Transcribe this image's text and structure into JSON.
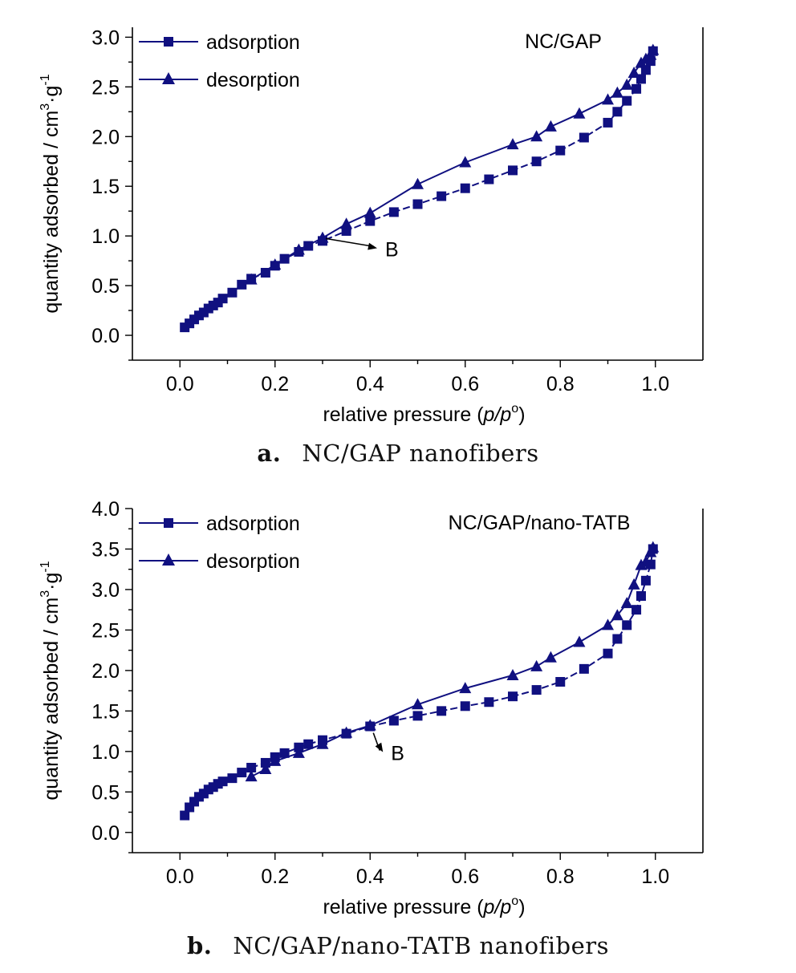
{
  "chart_data": [
    {
      "type": "line",
      "title": "NC/GAP",
      "xlabel_main": "relative pressure (",
      "xlabel_italic": "p/p",
      "xlabel_sup": "o",
      "xlabel_end": ")",
      "ylabel_main": "quantity adsorbed / cm",
      "ylabel_sup1": "3",
      "ylabel_mid": "·g",
      "ylabel_sup2": "-1",
      "xlim": [
        -0.1,
        1.1
      ],
      "ylim": [
        -0.25,
        3.1
      ],
      "xticks": [
        "0.0",
        "0.2",
        "0.4",
        "0.6",
        "0.8",
        "1.0"
      ],
      "yticks": [
        "0.0",
        "0.5",
        "1.0",
        "1.5",
        "2.0",
        "2.5",
        "3.0"
      ],
      "grid": false,
      "legend_position": "top-left",
      "series": [
        {
          "name": "adsorption",
          "marker": "square",
          "line": "dashed",
          "x": [
            0.01,
            0.02,
            0.03,
            0.04,
            0.05,
            0.06,
            0.07,
            0.08,
            0.09,
            0.11,
            0.13,
            0.15,
            0.18,
            0.2,
            0.22,
            0.25,
            0.27,
            0.3,
            0.35,
            0.4,
            0.45,
            0.5,
            0.55,
            0.6,
            0.65,
            0.7,
            0.75,
            0.8,
            0.85,
            0.9,
            0.92,
            0.94,
            0.96,
            0.97,
            0.98,
            0.99,
            0.995
          ],
          "y": [
            0.08,
            0.12,
            0.16,
            0.2,
            0.23,
            0.27,
            0.3,
            0.33,
            0.37,
            0.43,
            0.51,
            0.57,
            0.63,
            0.7,
            0.77,
            0.84,
            0.9,
            0.95,
            1.05,
            1.15,
            1.24,
            1.32,
            1.4,
            1.48,
            1.57,
            1.66,
            1.75,
            1.86,
            1.99,
            2.14,
            2.25,
            2.36,
            2.48,
            2.58,
            2.67,
            2.76,
            2.86
          ]
        },
        {
          "name": "desorption",
          "marker": "triangle",
          "line": "solid",
          "x": [
            0.995,
            0.99,
            0.98,
            0.97,
            0.955,
            0.94,
            0.92,
            0.9,
            0.84,
            0.78,
            0.75,
            0.7,
            0.6,
            0.5,
            0.4,
            0.35,
            0.3,
            0.25,
            0.2,
            0.15
          ],
          "y": [
            2.87,
            2.82,
            2.78,
            2.74,
            2.64,
            2.52,
            2.44,
            2.37,
            2.23,
            2.1,
            2.0,
            1.92,
            1.74,
            1.52,
            1.23,
            1.12,
            0.98,
            0.86,
            0.71,
            0.56
          ]
        }
      ],
      "annotation": {
        "text": "B",
        "x": 0.3,
        "y": 0.99
      }
    },
    {
      "type": "line",
      "title": "NC/GAP/nano-TATB",
      "xlabel_main": "relative pressure (",
      "xlabel_italic": "p/p",
      "xlabel_sup": "o",
      "xlabel_end": ")",
      "ylabel_main": "quantity adsorbed / cm",
      "ylabel_sup1": "3",
      "ylabel_mid": "·g",
      "ylabel_sup2": "-1",
      "xlim": [
        -0.1,
        1.1
      ],
      "ylim": [
        -0.25,
        4.0
      ],
      "xticks": [
        "0.0",
        "0.2",
        "0.4",
        "0.6",
        "0.8",
        "1.0"
      ],
      "yticks": [
        "0.0",
        "0.5",
        "1.0",
        "1.5",
        "2.0",
        "2.5",
        "3.0",
        "3.5",
        "4.0"
      ],
      "grid": false,
      "legend_position": "top-left",
      "series": [
        {
          "name": "adsorption",
          "marker": "square",
          "line": "dashed",
          "x": [
            0.01,
            0.02,
            0.03,
            0.04,
            0.05,
            0.06,
            0.07,
            0.08,
            0.09,
            0.11,
            0.13,
            0.15,
            0.18,
            0.2,
            0.22,
            0.25,
            0.27,
            0.3,
            0.35,
            0.4,
            0.45,
            0.5,
            0.55,
            0.6,
            0.65,
            0.7,
            0.75,
            0.8,
            0.85,
            0.9,
            0.92,
            0.94,
            0.96,
            0.97,
            0.98,
            0.99,
            0.995
          ],
          "y": [
            0.21,
            0.31,
            0.38,
            0.44,
            0.48,
            0.53,
            0.56,
            0.6,
            0.63,
            0.67,
            0.74,
            0.8,
            0.86,
            0.93,
            0.98,
            1.05,
            1.09,
            1.14,
            1.22,
            1.31,
            1.38,
            1.44,
            1.5,
            1.56,
            1.61,
            1.68,
            1.76,
            1.86,
            2.02,
            2.21,
            2.39,
            2.56,
            2.75,
            2.92,
            3.11,
            3.31,
            3.5
          ]
        },
        {
          "name": "desorption",
          "marker": "triangle",
          "line": "solid",
          "x": [
            0.995,
            0.99,
            0.98,
            0.97,
            0.955,
            0.94,
            0.92,
            0.9,
            0.84,
            0.78,
            0.75,
            0.7,
            0.6,
            0.5,
            0.4,
            0.35,
            0.3,
            0.25,
            0.2,
            0.18,
            0.15
          ],
          "y": [
            3.52,
            3.46,
            3.34,
            3.3,
            3.06,
            2.83,
            2.68,
            2.56,
            2.35,
            2.16,
            2.05,
            1.94,
            1.78,
            1.58,
            1.32,
            1.23,
            1.09,
            0.98,
            0.88,
            0.78,
            0.69
          ]
        }
      ],
      "annotation": {
        "text": "B",
        "x": 0.4,
        "y": 1.25
      }
    }
  ],
  "captions": [
    {
      "letter": "a.",
      "text": "NC/GAP nanofibers"
    },
    {
      "letter": "b.",
      "text": "NC/GAP/nano-TATB nanofibers"
    }
  ],
  "colors": {
    "series": "#101080",
    "axis": "#000000"
  }
}
